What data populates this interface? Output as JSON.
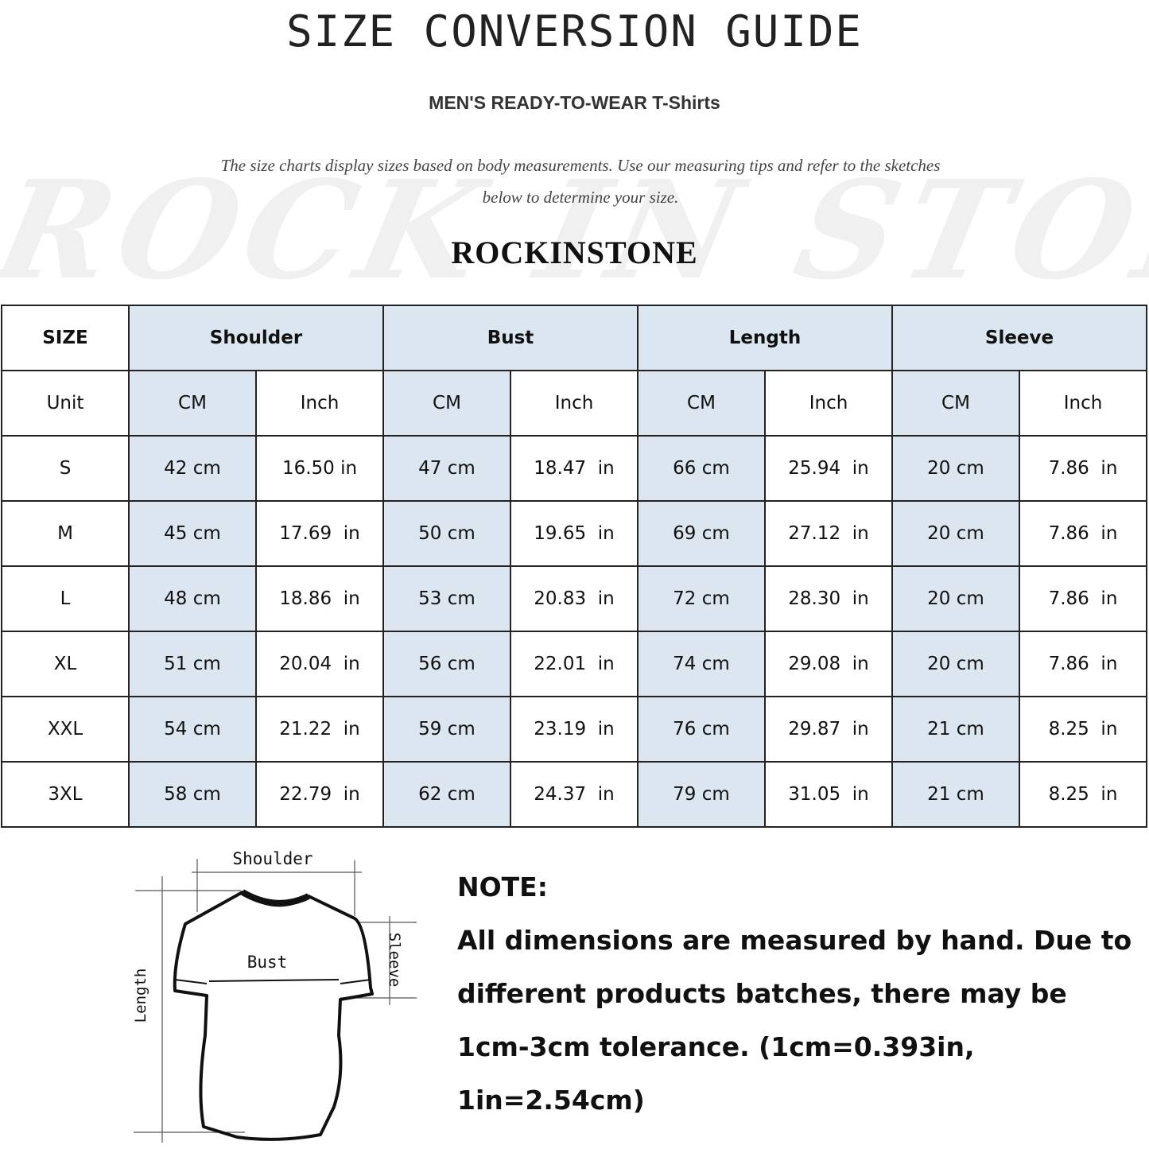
{
  "title": "SIZE CONVERSION GUIDE",
  "subtitle": "MEN'S READY-TO-WEAR T-Shirts",
  "description": {
    "line1": "The size charts display sizes based on body measurements. Use our measuring tips and refer to the sketches",
    "line2": "below to determine your size."
  },
  "watermark": "ROCK IN STONE",
  "brand": "ROCKINSTONE",
  "table": {
    "header": [
      "SIZE",
      "Shoulder",
      "Bust",
      "Length",
      "Sleeve"
    ],
    "units": [
      "Unit",
      "CM",
      "Inch",
      "CM",
      "Inch",
      "CM",
      "Inch",
      "CM",
      "Inch"
    ],
    "rows": [
      [
        "S",
        "42 cm",
        "16.50 in",
        "47 cm",
        "18.47  in",
        "66 cm",
        "25.94  in",
        "20 cm",
        "7.86  in"
      ],
      [
        "M",
        "45 cm",
        "17.69  in",
        "50 cm",
        "19.65  in",
        "69 cm",
        "27.12  in",
        "20 cm",
        "7.86  in"
      ],
      [
        "L",
        "48 cm",
        "18.86  in",
        "53 cm",
        "20.83  in",
        "72 cm",
        "28.30  in",
        "20 cm",
        "7.86  in"
      ],
      [
        "XL",
        "51 cm",
        "20.04  in",
        "56 cm",
        "22.01  in",
        "74 cm",
        "29.08  in",
        "20 cm",
        "7.86  in"
      ],
      [
        "XXL",
        "54 cm",
        "21.22  in",
        "59 cm",
        "23.19  in",
        "76 cm",
        "29.87  in",
        "21 cm",
        "8.25  in"
      ],
      [
        "3XL",
        "58 cm",
        "22.79  in",
        "62 cm",
        "24.37  in",
        "79 cm",
        "31.05  in",
        "21 cm",
        "8.25  in"
      ]
    ],
    "highlight_color": "#dce6f1"
  },
  "sketch": {
    "shoulder": "Shoulder",
    "bust": "Bust",
    "sleeve": "Sleeve",
    "length": "Length"
  },
  "note": {
    "heading": "NOTE:",
    "line1": "All dimensions are measured by hand. Due to",
    "line2": "different products batches, there may be",
    "line3": "1cm-3cm tolerance. (1cm=0.393in, 1in=2.54cm)"
  }
}
